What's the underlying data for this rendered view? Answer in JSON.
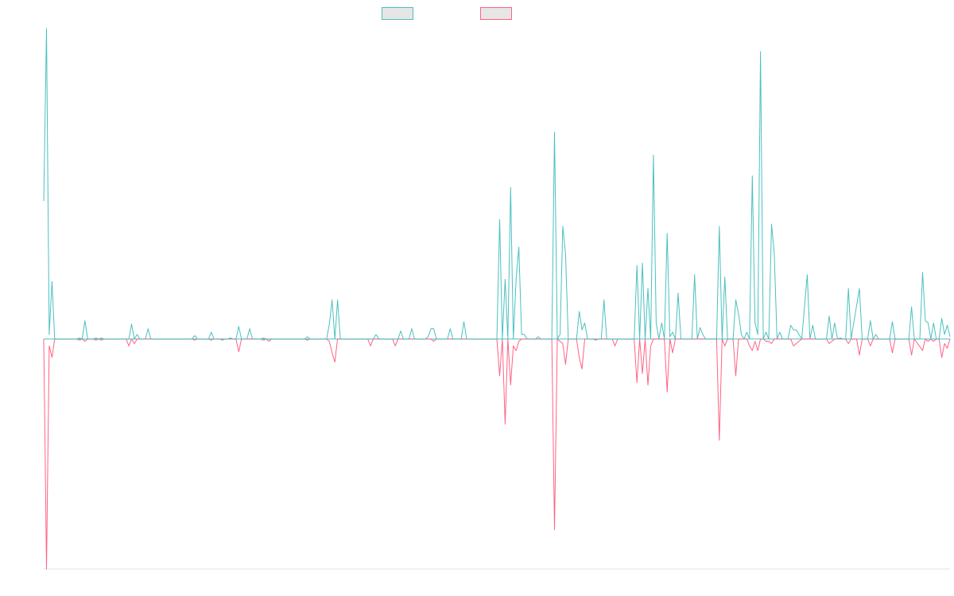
{
  "colors": {
    "series_a": "#4bc0c0",
    "series_b": "#ff6384",
    "legend_fill": "#e6e6e6",
    "axis": "#e0e0e0"
  },
  "chart_data": {
    "type": "line",
    "title": "",
    "xlabel": "",
    "ylabel": "",
    "grid": false,
    "legend": "top-center",
    "xlim": [
      0,
      330
    ],
    "ylim": [
      -100,
      135
    ],
    "series": [
      {
        "color": "#4bc0c0",
        "points": [
          [
            0,
            60
          ],
          [
            1,
            135
          ],
          [
            2,
            2
          ],
          [
            3,
            25
          ],
          [
            4,
            0
          ],
          [
            5,
            0
          ],
          [
            12,
            0
          ],
          [
            13,
            0.5
          ],
          [
            14,
            0
          ],
          [
            15,
            8
          ],
          [
            16,
            0
          ],
          [
            18,
            0
          ],
          [
            19,
            0.5
          ],
          [
            20,
            0
          ],
          [
            21,
            0.5
          ],
          [
            22,
            0
          ],
          [
            30,
            0
          ],
          [
            31,
            0
          ],
          [
            32,
            6.5
          ],
          [
            33,
            0
          ],
          [
            34,
            2
          ],
          [
            35,
            0
          ],
          [
            37,
            0
          ],
          [
            38,
            4.5
          ],
          [
            39,
            0
          ],
          [
            54,
            0
          ],
          [
            55,
            1.5
          ],
          [
            56,
            0
          ],
          [
            60,
            0
          ],
          [
            61,
            3
          ],
          [
            62,
            0
          ],
          [
            64,
            0
          ],
          [
            65,
            0
          ],
          [
            67,
            0
          ],
          [
            68,
            0.5
          ],
          [
            69,
            0
          ],
          [
            70,
            0
          ],
          [
            71,
            5.5
          ],
          [
            72,
            0
          ],
          [
            74,
            0
          ],
          [
            75,
            4.5
          ],
          [
            76,
            0
          ],
          [
            79,
            0
          ],
          [
            80,
            0.5
          ],
          [
            81,
            0
          ],
          [
            95,
            0
          ],
          [
            96,
            1
          ],
          [
            97,
            0
          ],
          [
            103,
            0
          ],
          [
            104,
            6.5
          ],
          [
            105,
            17
          ],
          [
            106,
            0
          ],
          [
            107,
            17
          ],
          [
            108,
            0
          ],
          [
            120,
            0
          ],
          [
            121,
            2
          ],
          [
            122,
            0
          ],
          [
            129,
            0
          ],
          [
            130,
            3.5
          ],
          [
            131,
            0
          ],
          [
            133,
            0
          ],
          [
            134,
            4.5
          ],
          [
            135,
            0
          ],
          [
            139,
            0
          ],
          [
            140,
            1
          ],
          [
            141,
            4.5
          ],
          [
            142,
            4.5
          ],
          [
            143,
            0
          ],
          [
            147,
            0
          ],
          [
            148,
            4.5
          ],
          [
            149,
            0
          ],
          [
            152,
            0
          ],
          [
            153,
            7.5
          ],
          [
            154,
            0
          ],
          [
            165,
            0
          ],
          [
            166,
            52
          ],
          [
            167,
            0
          ],
          [
            168,
            26
          ],
          [
            169,
            0
          ],
          [
            170,
            66
          ],
          [
            171,
            0
          ],
          [
            172,
            26
          ],
          [
            173,
            40
          ],
          [
            174,
            2
          ],
          [
            175,
            2
          ],
          [
            176,
            0
          ],
          [
            179,
            0
          ],
          [
            180,
            1
          ],
          [
            181,
            0
          ],
          [
            185,
            0
          ],
          [
            186,
            90
          ],
          [
            187,
            0
          ],
          [
            188,
            2
          ],
          [
            189,
            49
          ],
          [
            190,
            37
          ],
          [
            191,
            0
          ],
          [
            194,
            0
          ],
          [
            195,
            12
          ],
          [
            196,
            4
          ],
          [
            197,
            7
          ],
          [
            198,
            0
          ],
          [
            203,
            0
          ],
          [
            204,
            17
          ],
          [
            205,
            0
          ],
          [
            215,
            0
          ],
          [
            216,
            32
          ],
          [
            217,
            0
          ],
          [
            218,
            33
          ],
          [
            219,
            0
          ],
          [
            220,
            22
          ],
          [
            221,
            0
          ],
          [
            222,
            80
          ],
          [
            223,
            7
          ],
          [
            224,
            0
          ],
          [
            225,
            7
          ],
          [
            226,
            0
          ],
          [
            227,
            46
          ],
          [
            228,
            1
          ],
          [
            229,
            3
          ],
          [
            230,
            0
          ],
          [
            231,
            20
          ],
          [
            232,
            0
          ],
          [
            236,
            0
          ],
          [
            237,
            28
          ],
          [
            238,
            0
          ],
          [
            239,
            5
          ],
          [
            240,
            2
          ],
          [
            241,
            0
          ],
          [
            245,
            0
          ],
          [
            246,
            49
          ],
          [
            247,
            0
          ],
          [
            248,
            27
          ],
          [
            249,
            0
          ],
          [
            251,
            0
          ],
          [
            252,
            17
          ],
          [
            253,
            11
          ],
          [
            254,
            2
          ],
          [
            255,
            0
          ],
          [
            256,
            3
          ],
          [
            257,
            0
          ],
          [
            258,
            71
          ],
          [
            259,
            7
          ],
          [
            260,
            2
          ],
          [
            261,
            125
          ],
          [
            262,
            0
          ],
          [
            263,
            3
          ],
          [
            264,
            0
          ],
          [
            265,
            50
          ],
          [
            266,
            37
          ],
          [
            267,
            0
          ],
          [
            268,
            3
          ],
          [
            269,
            0
          ],
          [
            271,
            0
          ],
          [
            272,
            6
          ],
          [
            273,
            4
          ],
          [
            274,
            4
          ],
          [
            275,
            2
          ],
          [
            276,
            0
          ],
          [
            278,
            28
          ],
          [
            279,
            0
          ],
          [
            280,
            6
          ],
          [
            281,
            0
          ],
          [
            285,
            0
          ],
          [
            286,
            10
          ],
          [
            287,
            0
          ],
          [
            288,
            7
          ],
          [
            289,
            0
          ],
          [
            290,
            0.5
          ],
          [
            291,
            0
          ],
          [
            292,
            0
          ],
          [
            293,
            22
          ],
          [
            294,
            0
          ],
          [
            297,
            22
          ],
          [
            298,
            0
          ],
          [
            300,
            0
          ],
          [
            301,
            8
          ],
          [
            302,
            0
          ],
          [
            303,
            2
          ],
          [
            304,
            0
          ],
          [
            308,
            0
          ],
          [
            309,
            7.5
          ],
          [
            310,
            0
          ],
          [
            315,
            0
          ],
          [
            316,
            14
          ],
          [
            317,
            0
          ],
          [
            319,
            0
          ],
          [
            320,
            29
          ],
          [
            321,
            8
          ],
          [
            322,
            7
          ],
          [
            323,
            0
          ],
          [
            324,
            7
          ],
          [
            325,
            0
          ],
          [
            326,
            0
          ],
          [
            327,
            9
          ],
          [
            328,
            2
          ],
          [
            329,
            6
          ],
          [
            330,
            1
          ]
        ]
      },
      {
        "color": "#ff6384",
        "points": [
          [
            0,
            0
          ],
          [
            1,
            -100
          ],
          [
            2,
            -3
          ],
          [
            3,
            -8
          ],
          [
            4,
            0
          ],
          [
            5,
            0
          ],
          [
            12,
            0
          ],
          [
            13,
            -0.5
          ],
          [
            14,
            0
          ],
          [
            15,
            -1
          ],
          [
            16,
            0
          ],
          [
            18,
            0
          ],
          [
            19,
            -0.5
          ],
          [
            20,
            0
          ],
          [
            21,
            -0.5
          ],
          [
            22,
            0
          ],
          [
            30,
            0
          ],
          [
            31,
            -3
          ],
          [
            32,
            0
          ],
          [
            33,
            -2
          ],
          [
            34,
            0
          ],
          [
            54,
            0
          ],
          [
            55,
            -0.5
          ],
          [
            56,
            0
          ],
          [
            60,
            0
          ],
          [
            61,
            -0.5
          ],
          [
            62,
            0
          ],
          [
            64,
            0
          ],
          [
            65,
            -0.5
          ],
          [
            66,
            0
          ],
          [
            70,
            0
          ],
          [
            71,
            -5.5
          ],
          [
            72,
            0
          ],
          [
            79,
            0
          ],
          [
            80,
            -0.5
          ],
          [
            81,
            0
          ],
          [
            82,
            -1
          ],
          [
            83,
            0
          ],
          [
            95,
            0
          ],
          [
            96,
            -0.5
          ],
          [
            97,
            0
          ],
          [
            103,
            0
          ],
          [
            104,
            -1
          ],
          [
            105,
            -6
          ],
          [
            106,
            -10
          ],
          [
            107,
            0
          ],
          [
            118,
            0
          ],
          [
            119,
            -3
          ],
          [
            120,
            0
          ],
          [
            127,
            0
          ],
          [
            128,
            -3
          ],
          [
            129,
            0
          ],
          [
            141,
            0
          ],
          [
            142,
            -1
          ],
          [
            143,
            0
          ],
          [
            165,
            0
          ],
          [
            166,
            -16
          ],
          [
            167,
            0
          ],
          [
            168,
            -37
          ],
          [
            169,
            0
          ],
          [
            170,
            -20
          ],
          [
            171,
            -3
          ],
          [
            172,
            -5
          ],
          [
            173,
            -1
          ],
          [
            174,
            0
          ],
          [
            185,
            0
          ],
          [
            186,
            -83
          ],
          [
            187,
            0
          ],
          [
            189,
            -2
          ],
          [
            190,
            -11
          ],
          [
            191,
            0
          ],
          [
            194,
            0
          ],
          [
            195,
            -8
          ],
          [
            196,
            -13
          ],
          [
            197,
            0
          ],
          [
            200,
            0
          ],
          [
            201,
            -0.5
          ],
          [
            202,
            0
          ],
          [
            207,
            0
          ],
          [
            208,
            -3
          ],
          [
            209,
            0
          ],
          [
            215,
            0
          ],
          [
            216,
            -19
          ],
          [
            217,
            0
          ],
          [
            218,
            -15
          ],
          [
            219,
            0
          ],
          [
            220,
            -20
          ],
          [
            221,
            -3
          ],
          [
            222,
            0
          ],
          [
            223,
            0
          ],
          [
            226,
            0
          ],
          [
            227,
            -23
          ],
          [
            228,
            0
          ],
          [
            229,
            -6
          ],
          [
            230,
            0
          ],
          [
            245,
            0
          ],
          [
            246,
            -44
          ],
          [
            247,
            0
          ],
          [
            248,
            -3
          ],
          [
            249,
            0
          ],
          [
            251,
            0
          ],
          [
            252,
            -16
          ],
          [
            253,
            0
          ],
          [
            256,
            0
          ],
          [
            257,
            -3
          ],
          [
            258,
            -5
          ],
          [
            259,
            -1
          ],
          [
            260,
            -5
          ],
          [
            261,
            0
          ],
          [
            262,
            0
          ],
          [
            263,
            -1
          ],
          [
            264,
            -1
          ],
          [
            265,
            -2
          ],
          [
            266,
            0
          ],
          [
            272,
            0
          ],
          [
            273,
            -3
          ],
          [
            274,
            -2
          ],
          [
            275,
            -1
          ],
          [
            276,
            0
          ],
          [
            285,
            0
          ],
          [
            286,
            -2
          ],
          [
            287,
            -1
          ],
          [
            288,
            0
          ],
          [
            292,
            0
          ],
          [
            293,
            -2
          ],
          [
            294,
            0
          ],
          [
            296,
            0
          ],
          [
            297,
            -7
          ],
          [
            298,
            0
          ],
          [
            300,
            0
          ],
          [
            301,
            -3
          ],
          [
            302,
            0
          ],
          [
            308,
            0
          ],
          [
            309,
            -6
          ],
          [
            310,
            0
          ],
          [
            315,
            0
          ],
          [
            316,
            -7
          ],
          [
            317,
            0
          ],
          [
            320,
            -5
          ],
          [
            321,
            0
          ],
          [
            322,
            -1
          ],
          [
            323,
            0
          ],
          [
            324,
            -1
          ],
          [
            325,
            0
          ],
          [
            326,
            0
          ],
          [
            327,
            -8
          ],
          [
            328,
            -2
          ],
          [
            329,
            -4
          ],
          [
            330,
            0
          ]
        ]
      }
    ]
  }
}
